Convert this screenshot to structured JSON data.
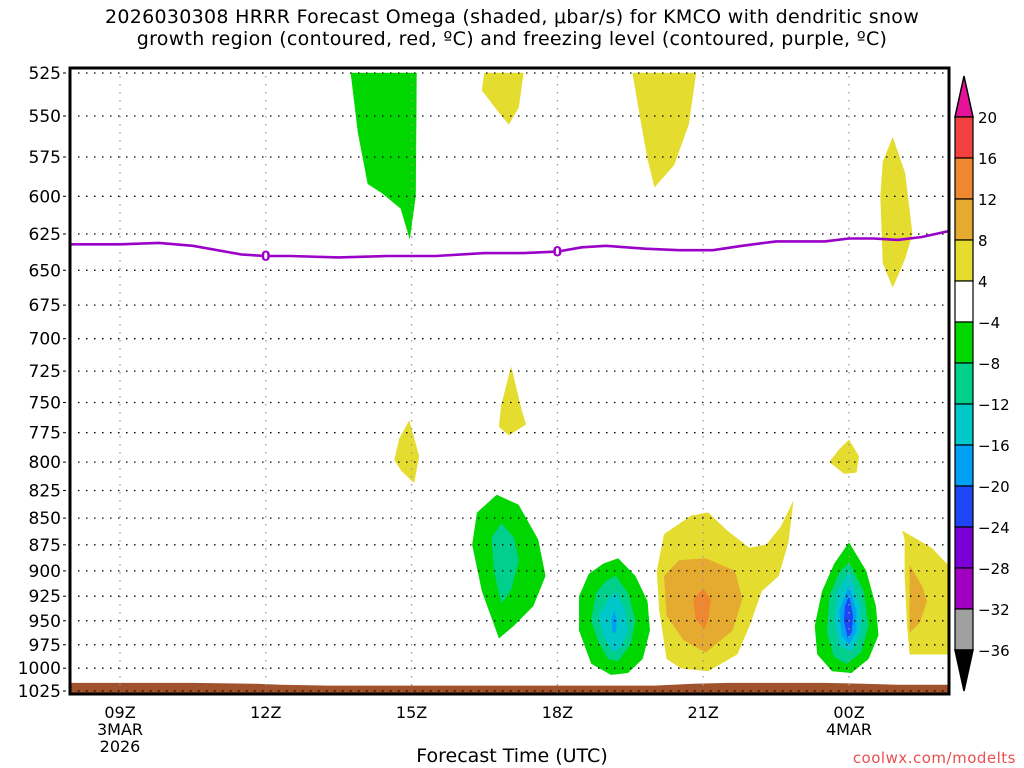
{
  "chart_data": {
    "type": "heatmap",
    "title": [
      "2026030308 HRRR Forecast Omega (shaded, μbar/s) for KMCO with dendritic snow",
      "growth region (contoured, red, ºC) and freezing level (contoured, purple, ºC)"
    ],
    "xlabel": "Forecast Time (UTC)",
    "ylabel": "",
    "credit": "coolwx.com/modelts",
    "x_units": "hours since 2026-03-03 09Z",
    "xlim": [
      -1.03,
      17.05
    ],
    "x_ticks": [
      {
        "x": 0,
        "label": [
          "09Z",
          "3MAR",
          "2026"
        ]
      },
      {
        "x": 3,
        "label": [
          "12Z"
        ]
      },
      {
        "x": 6,
        "label": [
          "15Z"
        ]
      },
      {
        "x": 9,
        "label": [
          "18Z"
        ]
      },
      {
        "x": 12,
        "label": [
          "21Z"
        ]
      },
      {
        "x": 15,
        "label": [
          "00Z",
          "4MAR"
        ]
      }
    ],
    "y_units": "hPa",
    "ylim": [
      525,
      1025
    ],
    "y_scale": "log, inverted",
    "y_ticks": [
      525,
      550,
      575,
      600,
      625,
      650,
      675,
      700,
      725,
      750,
      775,
      800,
      825,
      850,
      875,
      900,
      925,
      950,
      975,
      1000,
      1025
    ],
    "grid": true,
    "colorbar": {
      "placement": "right",
      "levels": [
        20,
        16,
        12,
        8,
        4,
        -4,
        -8,
        -12,
        -16,
        -20,
        -24,
        -28,
        -32,
        -36
      ],
      "bins": [
        {
          "range": ">20",
          "color": "#e6139a"
        },
        {
          "range": "16 to 20",
          "color": "#f24040"
        },
        {
          "range": "12 to 16",
          "color": "#ef8630"
        },
        {
          "range": "8 to 12",
          "color": "#e5ab30"
        },
        {
          "range": "4 to 8",
          "color": "#e5dc30"
        },
        {
          "range": "-4 to 4",
          "color": "#ffffff"
        },
        {
          "range": "-8 to -4",
          "color": "#00d700"
        },
        {
          "range": "-12 to -8",
          "color": "#00d08c"
        },
        {
          "range": "-16 to -12",
          "color": "#00c8c8"
        },
        {
          "range": "-20 to -16",
          "color": "#00a0f5"
        },
        {
          "range": "-24 to -20",
          "color": "#1e46f5"
        },
        {
          "range": "-28 to -24",
          "color": "#7a00d7"
        },
        {
          "range": "-32 to -28",
          "color": "#a000c0"
        },
        {
          "range": "-36 to -32",
          "color": "#a0a0a0"
        },
        {
          "range": "<-36",
          "color": "#000000"
        }
      ]
    },
    "shaded_regions": [
      {
        "name": "upper-green-plume",
        "value": -6,
        "color": "#00d700",
        "points": [
          [
            4.75,
            525
          ],
          [
            6.1,
            525
          ],
          [
            6.08,
            600
          ],
          [
            5.96,
            628
          ],
          [
            5.78,
            608
          ],
          [
            5.4,
            598
          ],
          [
            5.1,
            592
          ],
          [
            4.9,
            560
          ]
        ]
      },
      {
        "name": "upper-yellow-blob-1",
        "value": 6,
        "color": "#e5dc30",
        "points": [
          [
            7.5,
            525
          ],
          [
            8.3,
            525
          ],
          [
            8.2,
            545
          ],
          [
            8.0,
            555
          ],
          [
            7.8,
            548
          ],
          [
            7.45,
            535
          ]
        ]
      },
      {
        "name": "upper-yellow-blob-2",
        "value": 6,
        "color": "#e5dc30",
        "points": [
          [
            10.55,
            525
          ],
          [
            11.85,
            525
          ],
          [
            11.7,
            555
          ],
          [
            11.4,
            580
          ],
          [
            11.0,
            594
          ],
          [
            10.85,
            575
          ],
          [
            10.7,
            550
          ]
        ]
      },
      {
        "name": "right-yellow-streak",
        "value": 6,
        "color": "#e5dc30",
        "points": [
          [
            15.9,
            563
          ],
          [
            16.15,
            585
          ],
          [
            16.3,
            625
          ],
          [
            16.15,
            642
          ],
          [
            15.9,
            662
          ],
          [
            15.7,
            645
          ],
          [
            15.65,
            600
          ],
          [
            15.7,
            578
          ]
        ]
      },
      {
        "name": "yellow-fleck-750",
        "value": 5,
        "color": "#e5dc30",
        "points": [
          [
            8.05,
            722
          ],
          [
            8.25,
            755
          ],
          [
            8.35,
            768
          ],
          [
            8.0,
            777
          ],
          [
            7.8,
            770
          ],
          [
            7.85,
            752
          ]
        ]
      },
      {
        "name": "yellow-fleck-800",
        "value": 5,
        "color": "#e5dc30",
        "points": [
          [
            5.95,
            765
          ],
          [
            6.15,
            795
          ],
          [
            6.05,
            818
          ],
          [
            5.8,
            808
          ],
          [
            5.65,
            798
          ],
          [
            5.75,
            780
          ]
        ]
      },
      {
        "name": "yellow-fleck-800-right",
        "value": 5,
        "color": "#e5dc30",
        "points": [
          [
            15.0,
            781
          ],
          [
            15.2,
            795
          ],
          [
            15.15,
            809
          ],
          [
            14.9,
            810
          ],
          [
            14.6,
            800
          ],
          [
            14.8,
            789
          ]
        ]
      },
      {
        "name": "green-cell-1",
        "value": -6,
        "color": "#00d700",
        "points": [
          [
            7.75,
            829
          ],
          [
            8.2,
            838
          ],
          [
            8.6,
            870
          ],
          [
            8.75,
            905
          ],
          [
            8.5,
            935
          ],
          [
            8.1,
            955
          ],
          [
            7.8,
            968
          ],
          [
            7.45,
            920
          ],
          [
            7.25,
            875
          ],
          [
            7.35,
            845
          ]
        ]
      },
      {
        "name": "green-cell-1-core",
        "value": -10,
        "color": "#00d08c",
        "points": [
          [
            7.85,
            855
          ],
          [
            8.1,
            868
          ],
          [
            8.2,
            890
          ],
          [
            8.05,
            918
          ],
          [
            7.85,
            932
          ],
          [
            7.7,
            900
          ],
          [
            7.65,
            868
          ]
        ]
      },
      {
        "name": "green-cell-2",
        "value": -6,
        "color": "#00d700",
        "points": [
          [
            10.25,
            888
          ],
          [
            10.6,
            905
          ],
          [
            10.85,
            930
          ],
          [
            10.9,
            960
          ],
          [
            10.75,
            990
          ],
          [
            10.45,
            1005
          ],
          [
            10.1,
            1007
          ],
          [
            9.7,
            995
          ],
          [
            9.45,
            960
          ],
          [
            9.45,
            925
          ],
          [
            9.65,
            903
          ],
          [
            9.95,
            893
          ]
        ]
      },
      {
        "name": "green-cell-2-mid",
        "value": -10,
        "color": "#00d08c",
        "points": [
          [
            10.2,
            905
          ],
          [
            10.45,
            922
          ],
          [
            10.6,
            950
          ],
          [
            10.5,
            975
          ],
          [
            10.25,
            992
          ],
          [
            10.05,
            990
          ],
          [
            9.85,
            972
          ],
          [
            9.7,
            950
          ],
          [
            9.8,
            922
          ],
          [
            10.0,
            910
          ]
        ]
      },
      {
        "name": "green-cell-2-inner",
        "value": -14,
        "color": "#00c8c8",
        "points": [
          [
            10.2,
            920
          ],
          [
            10.4,
            940
          ],
          [
            10.45,
            960
          ],
          [
            10.3,
            978
          ],
          [
            10.15,
            983
          ],
          [
            9.95,
            965
          ],
          [
            9.85,
            945
          ],
          [
            10.05,
            928
          ]
        ]
      },
      {
        "name": "green-cell-2-core",
        "value": -18,
        "color": "#00a0f5",
        "points": [
          [
            10.17,
            940
          ],
          [
            10.22,
            950
          ],
          [
            10.2,
            962
          ],
          [
            10.14,
            962
          ],
          [
            10.12,
            948
          ]
        ]
      },
      {
        "name": "yellow-complex",
        "value": 6,
        "color": "#e5dc30",
        "points": [
          [
            11.75,
            848
          ],
          [
            12.1,
            845
          ],
          [
            12.5,
            862
          ],
          [
            12.95,
            878
          ],
          [
            13.3,
            875
          ],
          [
            13.6,
            858
          ],
          [
            13.85,
            835
          ],
          [
            13.75,
            872
          ],
          [
            13.55,
            905
          ],
          [
            13.2,
            920
          ],
          [
            12.95,
            955
          ],
          [
            12.7,
            985
          ],
          [
            12.1,
            1003
          ],
          [
            11.55,
            1000
          ],
          [
            11.25,
            990
          ],
          [
            11.1,
            940
          ],
          [
            11.05,
            900
          ],
          [
            11.2,
            865
          ]
        ]
      },
      {
        "name": "orange-core",
        "value": 10,
        "color": "#e5ab30",
        "points": [
          [
            12.05,
            888
          ],
          [
            12.65,
            900
          ],
          [
            12.8,
            928
          ],
          [
            12.6,
            960
          ],
          [
            12.05,
            983
          ],
          [
            11.6,
            970
          ],
          [
            11.25,
            945
          ],
          [
            11.2,
            905
          ],
          [
            11.5,
            890
          ]
        ]
      },
      {
        "name": "dark-orange-core",
        "value": 14,
        "color": "#ef8630",
        "points": [
          [
            12.0,
            918
          ],
          [
            12.15,
            928
          ],
          [
            12.1,
            948
          ],
          [
            12.02,
            958
          ],
          [
            11.85,
            948
          ],
          [
            11.8,
            928
          ]
        ]
      },
      {
        "name": "green-cell-3",
        "value": -6,
        "color": "#00d700",
        "points": [
          [
            15.0,
            873
          ],
          [
            15.35,
            900
          ],
          [
            15.55,
            935
          ],
          [
            15.6,
            965
          ],
          [
            15.4,
            990
          ],
          [
            15.05,
            1005
          ],
          [
            14.65,
            1003
          ],
          [
            14.35,
            985
          ],
          [
            14.3,
            955
          ],
          [
            14.45,
            920
          ],
          [
            14.7,
            893
          ]
        ]
      },
      {
        "name": "green-cell-3-mid",
        "value": -10,
        "color": "#00d08c",
        "points": [
          [
            15.0,
            892
          ],
          [
            15.3,
            920
          ],
          [
            15.4,
            955
          ],
          [
            15.25,
            983
          ],
          [
            14.95,
            995
          ],
          [
            14.7,
            988
          ],
          [
            14.55,
            962
          ],
          [
            14.6,
            925
          ],
          [
            14.8,
            902
          ]
        ]
      },
      {
        "name": "green-cell-3-inner",
        "value": -14,
        "color": "#00c8c8",
        "points": [
          [
            15.0,
            902
          ],
          [
            15.25,
            935
          ],
          [
            15.25,
            962
          ],
          [
            15.05,
            982
          ],
          [
            14.8,
            976
          ],
          [
            14.7,
            950
          ],
          [
            14.75,
            922
          ]
        ]
      },
      {
        "name": "green-cell-3-inner2",
        "value": -18,
        "color": "#00a0f5",
        "points": [
          [
            15.0,
            915
          ],
          [
            15.15,
            940
          ],
          [
            15.15,
            960
          ],
          [
            15.0,
            975
          ],
          [
            14.85,
            965
          ],
          [
            14.8,
            940
          ]
        ]
      },
      {
        "name": "green-cell-3-core",
        "value": -22,
        "color": "#1e46f5",
        "points": [
          [
            15.0,
            925
          ],
          [
            15.08,
            945
          ],
          [
            15.05,
            962
          ],
          [
            14.98,
            968
          ],
          [
            14.9,
            950
          ],
          [
            14.92,
            935
          ]
        ]
      },
      {
        "name": "right-yellow-complex",
        "value": 6,
        "color": "#e5dc30",
        "points": [
          [
            16.1,
            862
          ],
          [
            16.7,
            878
          ],
          [
            17.05,
            895
          ],
          [
            17.05,
            985
          ],
          [
            16.25,
            985
          ],
          [
            16.2,
            955
          ],
          [
            16.15,
            905
          ],
          [
            16.15,
            870
          ]
        ]
      },
      {
        "name": "right-orange-core",
        "value": 10,
        "color": "#e5ab30",
        "points": [
          [
            16.25,
            895
          ],
          [
            16.5,
            915
          ],
          [
            16.6,
            930
          ],
          [
            16.45,
            952
          ],
          [
            16.25,
            962
          ],
          [
            16.25,
            930
          ]
        ]
      }
    ],
    "freezing_level": {
      "name": "0 ºC isotherm",
      "color": "#9b00c8",
      "label": "0",
      "label_x": [
        3.0,
        9.0
      ],
      "points": [
        [
          -1.03,
          632
        ],
        [
          0.0,
          632
        ],
        [
          0.8,
          631
        ],
        [
          1.5,
          633
        ],
        [
          2.5,
          639
        ],
        [
          3.0,
          640
        ],
        [
          3.5,
          640
        ],
        [
          4.5,
          641
        ],
        [
          5.5,
          640
        ],
        [
          6.5,
          640
        ],
        [
          7.5,
          638
        ],
        [
          8.3,
          638
        ],
        [
          9.0,
          637
        ],
        [
          9.5,
          634
        ],
        [
          10.0,
          633
        ],
        [
          10.8,
          635
        ],
        [
          11.5,
          636
        ],
        [
          12.2,
          636
        ],
        [
          12.8,
          633
        ],
        [
          13.5,
          630
        ],
        [
          14.5,
          630
        ],
        [
          15.0,
          628
        ],
        [
          15.5,
          628
        ],
        [
          16.0,
          629
        ],
        [
          16.5,
          627
        ],
        [
          17.05,
          623
        ]
      ]
    },
    "surface": {
      "name": "terrain below ground",
      "color": "#a0522d",
      "points": [
        [
          -1.03,
          1016
        ],
        [
          0.0,
          1016
        ],
        [
          1.5,
          1016
        ],
        [
          2.8,
          1017
        ],
        [
          3.3,
          1018
        ],
        [
          4.3,
          1019
        ],
        [
          6.0,
          1019
        ],
        [
          9.0,
          1019
        ],
        [
          11.0,
          1019
        ],
        [
          11.8,
          1017
        ],
        [
          12.5,
          1016
        ],
        [
          14.5,
          1016
        ],
        [
          15.3,
          1017
        ],
        [
          16.0,
          1018
        ],
        [
          17.05,
          1018
        ]
      ]
    }
  }
}
